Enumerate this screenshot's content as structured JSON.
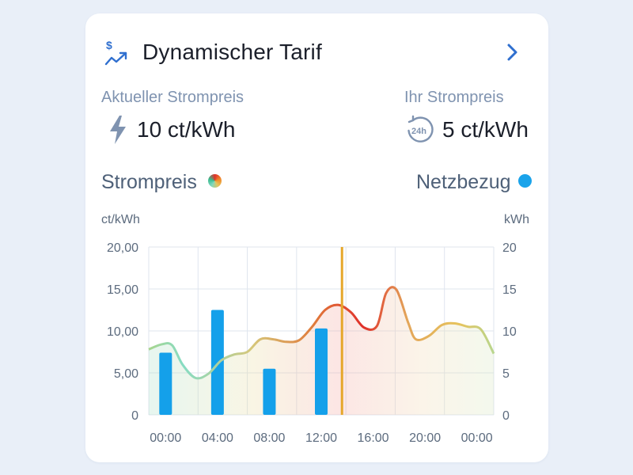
{
  "card": {
    "title": "Dynamischer Tarif",
    "title_icon": "dollar-trend-icon",
    "nav_icon": "chevron-right-icon"
  },
  "prices": {
    "current": {
      "label": "Aktueller Strompreis",
      "value": "10 ct/kWh",
      "icon": "lightning-icon"
    },
    "yours": {
      "label": "Ihr Strompreis",
      "value": "5 ct/kWh",
      "icon": "24h-history-icon"
    }
  },
  "legend": {
    "left": {
      "label": "Strompreis",
      "icon": "gradient-dot"
    },
    "right": {
      "label": "Netzbezug",
      "color": "#1aa3ea"
    }
  },
  "colors": {
    "accent": "#2f6fcf",
    "bar": "#14a0ea",
    "now_line": "#e6a72a",
    "price_low": "#7fd9c0",
    "price_mid": "#e6c35c",
    "price_high": "#e0302a"
  },
  "chart_data": {
    "type": "bar+line",
    "left_unit": "ct/kWh",
    "right_unit": "kWh",
    "left_ticks": [
      "20,00",
      "15,00",
      "10,00",
      "5,00",
      "0"
    ],
    "right_ticks": [
      "20",
      "15",
      "10",
      "5",
      "0"
    ],
    "x_ticks": [
      "00:00",
      "04:00",
      "08:00",
      "12:00",
      "16:00",
      "20:00",
      "00:00"
    ],
    "ylim_left": [
      0,
      20
    ],
    "ylim_right": [
      0,
      20
    ],
    "xlim_hours": [
      -1.3,
      25.3
    ],
    "now_hour": 13.6,
    "price_series": {
      "name": "Strompreis",
      "points": [
        [
          -1.3,
          7.8
        ],
        [
          -0.3,
          8.4
        ],
        [
          0.5,
          8.3
        ],
        [
          1.3,
          6.0
        ],
        [
          2.3,
          4.4
        ],
        [
          3.3,
          4.9
        ],
        [
          4.3,
          6.5
        ],
        [
          5.3,
          7.2
        ],
        [
          6.3,
          7.5
        ],
        [
          7.3,
          9.0
        ],
        [
          8.3,
          9.0
        ],
        [
          9.3,
          8.7
        ],
        [
          10.3,
          8.9
        ],
        [
          11.3,
          10.5
        ],
        [
          12.3,
          12.5
        ],
        [
          13.3,
          13.1
        ],
        [
          14.3,
          12.2
        ],
        [
          15.3,
          10.4
        ],
        [
          16.3,
          10.6
        ],
        [
          17.0,
          14.5
        ],
        [
          17.8,
          14.9
        ],
        [
          18.7,
          11.0
        ],
        [
          19.3,
          9.0
        ],
        [
          20.3,
          9.4
        ],
        [
          21.3,
          10.7
        ],
        [
          22.3,
          10.9
        ],
        [
          23.3,
          10.5
        ],
        [
          24.3,
          10.2
        ],
        [
          25.3,
          7.3
        ]
      ]
    },
    "netzbezug_series": {
      "name": "Netzbezug",
      "hours": [
        0,
        4,
        8,
        12
      ],
      "values": [
        7.4,
        12.5,
        5.5,
        10.3
      ]
    }
  }
}
